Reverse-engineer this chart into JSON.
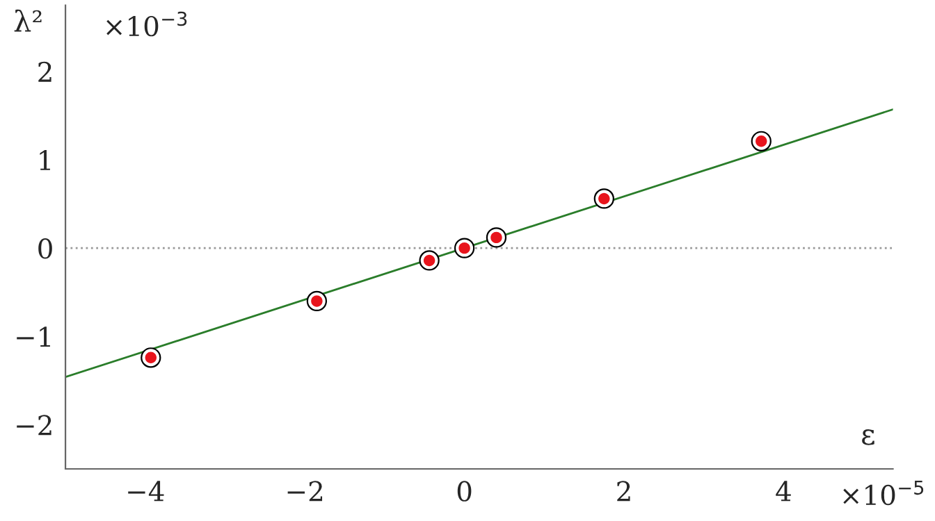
{
  "chart_data": {
    "type": "scatter",
    "xlabel": "ε",
    "ylabel": "λ²",
    "annotations": [
      "×10$^{−3}$",
      "×10$^{−5}$"
    ],
    "series": [
      {
        "color": "#e8141c",
        "x": [
          -3.93,
          -1.85,
          -0.44,
          0,
          0.4,
          1.75,
          3.72
        ],
        "values": [
          -1.24,
          -0.6,
          -0.14,
          0,
          0.12,
          0.56,
          1.21
        ],
        "marker": "circle"
      },
      {
        "type": "line",
        "color": "#2a7d2a",
        "x": [
          -5,
          5.37
        ],
        "values": [
          -1.46,
          1.57
        ],
        "marker": "none",
        "line_style": "solid"
      }
    ],
    "xlim": [
      -5,
      5.37
    ],
    "ylim": [
      -2.5,
      2.75
    ],
    "xticks": [
      {
        "value": -4,
        "label": "−4"
      },
      {
        "value": -2,
        "label": "−2"
      },
      0,
      2,
      4
    ],
    "yticks": [
      {
        "value": -2,
        "label": "−2"
      },
      {
        "value": -1,
        "label": "−1"
      },
      0,
      1,
      2
    ],
    "ref_lines": [
      {
        "axis": "y",
        "value": 0,
        "label": null,
        "color": "#999999",
        "line_style": "dotted"
      }
    ],
    "grid": false,
    "legend": false
  }
}
